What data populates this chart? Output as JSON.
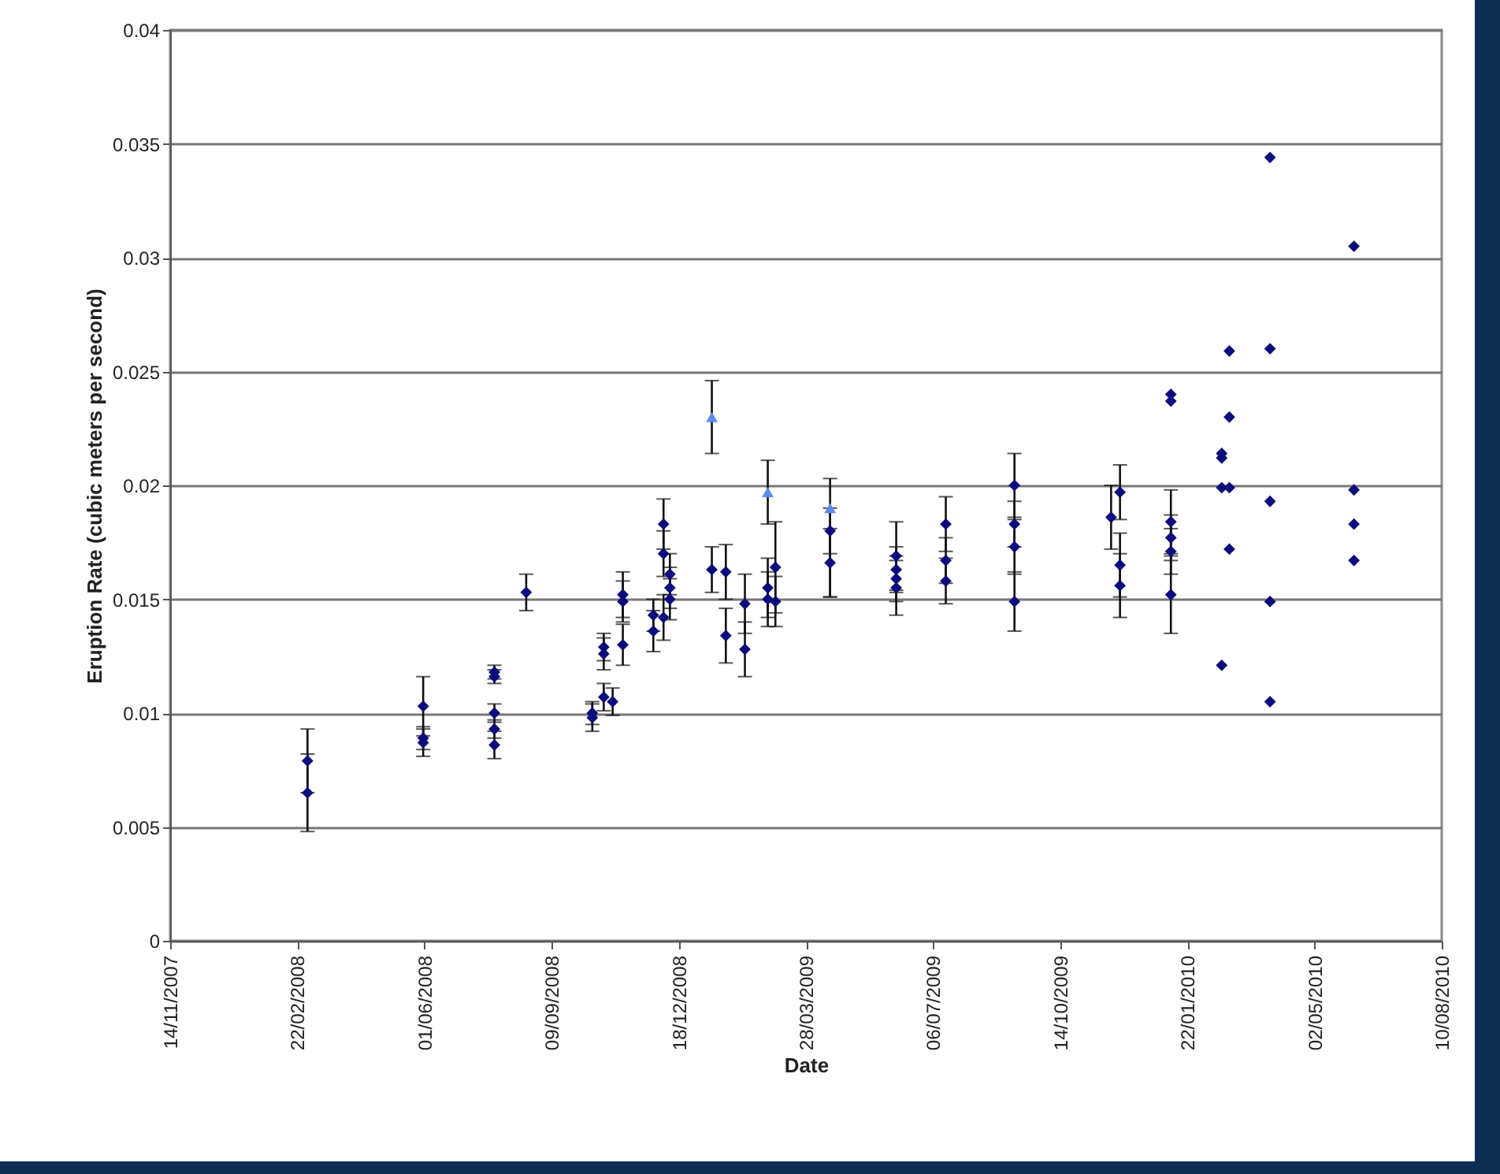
{
  "chart_data": {
    "type": "scatter",
    "xlabel": "Date",
    "ylabel": "Eruption Rate (cubic meters per second)",
    "grid": "y",
    "xlim": [
      "2007-11-14",
      "2010-08-10"
    ],
    "xticks": [
      {
        "value": "2007-11-14",
        "label": "14/11/2007"
      },
      {
        "value": "2008-02-22",
        "label": "22/02/2008"
      },
      {
        "value": "2008-06-01",
        "label": "01/06/2008"
      },
      {
        "value": "2008-09-09",
        "label": "09/09/2008"
      },
      {
        "value": "2008-12-18",
        "label": "18/12/2008"
      },
      {
        "value": "2009-03-28",
        "label": "28/03/2009"
      },
      {
        "value": "2009-07-06",
        "label": "06/07/2009"
      },
      {
        "value": "2009-10-14",
        "label": "14/10/2009"
      },
      {
        "value": "2010-01-22",
        "label": "22/01/2010"
      },
      {
        "value": "2010-05-02",
        "label": "02/05/2010"
      },
      {
        "value": "2010-08-10",
        "label": "10/08/2010"
      }
    ],
    "ylim": [
      0,
      0.04
    ],
    "yticks": [
      0,
      0.005,
      0.01,
      0.015,
      0.02,
      0.025,
      0.03,
      0.035,
      0.04
    ],
    "series": [
      {
        "color": "#0c0c7c",
        "marker": "diamond",
        "x": [
          "2008-03-01",
          "2008-03-01",
          "2008-05-31",
          "2008-05-31",
          "2008-05-31",
          "2008-07-26",
          "2008-07-26",
          "2008-07-26",
          "2008-07-26",
          "2008-07-26",
          "2008-08-20",
          "2008-10-11",
          "2008-10-11",
          "2008-10-20",
          "2008-10-20",
          "2008-10-20",
          "2008-10-27",
          "2008-11-04",
          "2008-11-04",
          "2008-11-04",
          "2008-11-28",
          "2008-11-28",
          "2008-12-06",
          "2008-12-06",
          "2008-12-06",
          "2008-12-11",
          "2008-12-11",
          "2008-12-11",
          "2009-01-13",
          "2009-01-24",
          "2009-01-24",
          "2009-02-08",
          "2009-02-08",
          "2009-02-26",
          "2009-02-26",
          "2009-03-04",
          "2009-03-04",
          "2009-04-16",
          "2009-04-16",
          "2009-06-07",
          "2009-06-07",
          "2009-06-07",
          "2009-06-07",
          "2009-07-16",
          "2009-07-16",
          "2009-07-16",
          "2009-09-08",
          "2009-09-08",
          "2009-09-08",
          "2009-09-08",
          "2009-11-23",
          "2009-11-30",
          "2009-11-30",
          "2009-11-30",
          "2010-01-09",
          "2010-01-09",
          "2010-01-09",
          "2010-01-09",
          "2010-01-09",
          "2010-01-09",
          "2010-02-18",
          "2010-02-18",
          "2010-02-18",
          "2010-02-18",
          "2010-02-24",
          "2010-02-24",
          "2010-02-24",
          "2010-02-24",
          "2010-03-28",
          "2010-03-28",
          "2010-03-28",
          "2010-03-28",
          "2010-03-28",
          "2010-06-02",
          "2010-06-02",
          "2010-06-02",
          "2010-06-02"
        ],
        "values": [
          0.0079,
          0.0065,
          0.0103,
          0.0089,
          0.0087,
          0.0118,
          0.0116,
          0.01,
          0.0093,
          0.0086,
          0.0153,
          0.01,
          0.0098,
          0.0129,
          0.0126,
          0.0107,
          0.0105,
          0.0152,
          0.0149,
          0.013,
          0.0143,
          0.0136,
          0.0183,
          0.017,
          0.0142,
          0.0161,
          0.0155,
          0.015,
          0.0163,
          0.0162,
          0.0134,
          0.0148,
          0.0128,
          0.0155,
          0.015,
          0.0164,
          0.0149,
          0.018,
          0.0166,
          0.0169,
          0.0163,
          0.0159,
          0.0155,
          0.0183,
          0.0167,
          0.0158,
          0.02,
          0.0183,
          0.0173,
          0.0149,
          0.0186,
          0.0197,
          0.0165,
          0.0156,
          0.024,
          0.0237,
          0.0184,
          0.0177,
          0.0171,
          0.0152,
          0.0214,
          0.0212,
          0.0199,
          0.0121,
          0.0259,
          0.023,
          0.0199,
          0.0172,
          0.0344,
          0.026,
          0.0193,
          0.0149,
          0.0105,
          0.0305,
          0.0198,
          0.0183,
          0.0167
        ],
        "errors": [
          0.0014,
          0.0017,
          0.0013,
          0.0005,
          0.0006,
          0.0003,
          0.0003,
          0.0004,
          0.0004,
          0.0006,
          0.0008,
          0.0005,
          0.0006,
          0.0006,
          0.0007,
          0.0006,
          0.0006,
          0.001,
          0.0009,
          0.0009,
          0.0007,
          0.0009,
          0.0011,
          0.001,
          0.001,
          0.0009,
          0.0009,
          0.0009,
          0.001,
          0.0012,
          0.0012,
          0.0013,
          0.0012,
          0.0013,
          0.0012,
          0.002,
          0.0011,
          0.001,
          0.0015,
          0.0015,
          0.001,
          0.001,
          0.0012,
          0.0012,
          0.001,
          0.001,
          0.0014,
          0.001,
          0.0012,
          0.0013,
          0.0014,
          0.0012,
          0.0014,
          0.0014,
          null,
          null,
          0.0014,
          0.001,
          0.001,
          0.0017,
          null,
          null,
          null,
          null,
          null,
          null,
          null,
          null,
          null,
          null,
          null,
          null,
          null,
          null,
          null,
          null,
          null
        ]
      },
      {
        "color": "#5b8ce8",
        "marker": "triangle",
        "x": [
          "2009-01-13",
          "2009-02-26",
          "2009-04-16"
        ],
        "values": [
          0.023,
          0.0197,
          0.019
        ],
        "errors": [
          0.0016,
          0.0014,
          [
            0.0151,
            0.0203
          ]
        ]
      }
    ]
  }
}
